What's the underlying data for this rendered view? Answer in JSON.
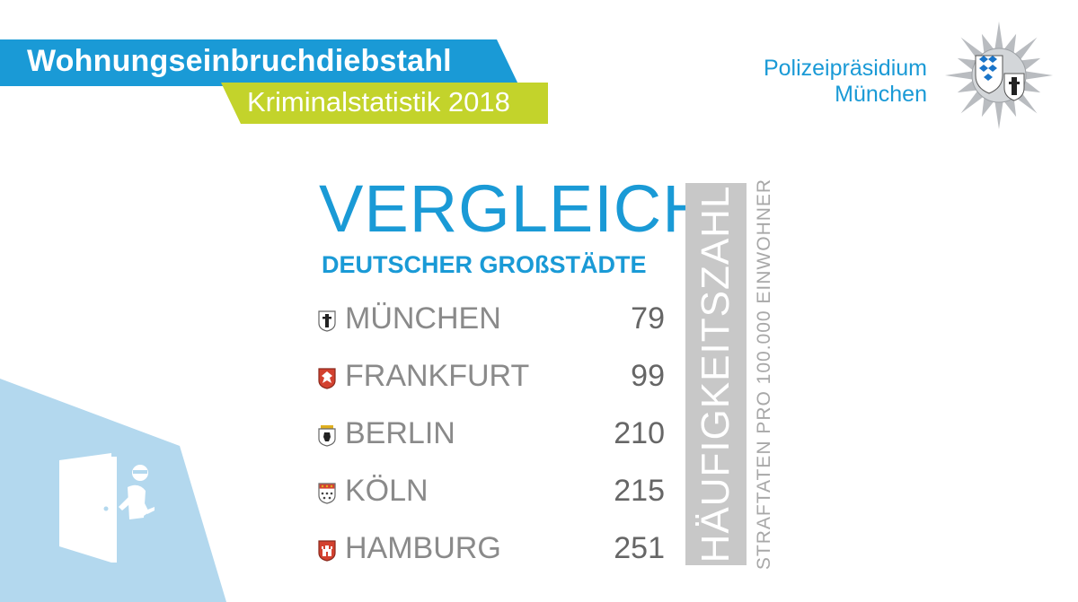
{
  "header": {
    "title": "Wohnungseinbruchdiebstahl",
    "subtitle": "Kriminalstatistik  2018"
  },
  "organization": {
    "line1": "Polizeipräsidium",
    "line2": "München",
    "badge_icon": "police-star-icon"
  },
  "main": {
    "heading": "VERGLEICH",
    "subheading": "DEUTSCHER GROßSTÄDTE",
    "rows": [
      {
        "city": "MÜNCHEN",
        "value": "79",
        "icon": "munich-crest-icon"
      },
      {
        "city": "FRANKFURT",
        "value": "99",
        "icon": "frankfurt-crest-icon"
      },
      {
        "city": "BERLIN",
        "value": "210",
        "icon": "berlin-crest-icon"
      },
      {
        "city": "KÖLN",
        "value": "215",
        "icon": "cologne-crest-icon"
      },
      {
        "city": "HAMBURG",
        "value": "251",
        "icon": "hamburg-crest-icon"
      }
    ]
  },
  "side": {
    "label": "HÄUFIGKEITSZAHL",
    "sublabel": "STRAFTATEN PRO 100.000 EINWOHNER"
  },
  "illustration": {
    "icon": "burglar-door-icon"
  },
  "colors": {
    "accent_blue": "#1a9ad6",
    "accent_green": "#c3d32b",
    "light_blue": "#b3d8ee",
    "gray_bar": "#c8c8c8"
  }
}
